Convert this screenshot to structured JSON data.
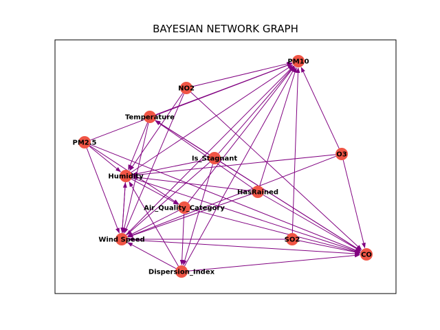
{
  "title": "BAYESIAN NETWORK GRAPH",
  "colors": {
    "node": "#f05545",
    "edge": "#800080",
    "frame": "#000000",
    "background": "#ffffff"
  },
  "nodes": [
    {
      "id": "PM10",
      "label": "PM10"
    },
    {
      "id": "NO2",
      "label": "NO2"
    },
    {
      "id": "Temperature",
      "label": "Temperature"
    },
    {
      "id": "PM2.5",
      "label": "PM2.5"
    },
    {
      "id": "O3",
      "label": "O3"
    },
    {
      "id": "Is_Stagnant",
      "label": "Is_Stagnant"
    },
    {
      "id": "Humidity",
      "label": "Humidity"
    },
    {
      "id": "HasRained",
      "label": "HasRained"
    },
    {
      "id": "Air_Quality_Category",
      "label": "Air_Quality_Category"
    },
    {
      "id": "Wind Speed",
      "label": "Wind Speed"
    },
    {
      "id": "SO2",
      "label": "SO2"
    },
    {
      "id": "CO",
      "label": "CO"
    },
    {
      "id": "Dispersion_Index",
      "label": "Dispersion_Index"
    }
  ],
  "edges": [
    [
      "PM2.5",
      "PM10"
    ],
    [
      "Temperature",
      "PM10"
    ],
    [
      "NO2",
      "PM10"
    ],
    [
      "Humidity",
      "PM10"
    ],
    [
      "Is_Stagnant",
      "PM10"
    ],
    [
      "Wind Speed",
      "PM10"
    ],
    [
      "Air_Quality_Category",
      "PM10"
    ],
    [
      "HasRained",
      "PM10"
    ],
    [
      "SO2",
      "PM10"
    ],
    [
      "O3",
      "PM10"
    ],
    [
      "Dispersion_Index",
      "PM10"
    ],
    [
      "NO2",
      "Humidity"
    ],
    [
      "NO2",
      "Wind Speed"
    ],
    [
      "NO2",
      "CO"
    ],
    [
      "Temperature",
      "Humidity"
    ],
    [
      "Temperature",
      "Wind Speed"
    ],
    [
      "Temperature",
      "CO"
    ],
    [
      "PM2.5",
      "Humidity"
    ],
    [
      "PM2.5",
      "Wind Speed"
    ],
    [
      "PM2.5",
      "Air_Quality_Category"
    ],
    [
      "PM2.5",
      "CO"
    ],
    [
      "O3",
      "Humidity"
    ],
    [
      "O3",
      "Wind Speed"
    ],
    [
      "O3",
      "CO"
    ],
    [
      "Is_Stagnant",
      "Temperature"
    ],
    [
      "Is_Stagnant",
      "Humidity"
    ],
    [
      "Is_Stagnant",
      "Wind Speed"
    ],
    [
      "Is_Stagnant",
      "Dispersion_Index"
    ],
    [
      "Is_Stagnant",
      "CO"
    ],
    [
      "HasRained",
      "Temperature"
    ],
    [
      "HasRained",
      "Humidity"
    ],
    [
      "HasRained",
      "Wind Speed"
    ],
    [
      "HasRained",
      "CO"
    ],
    [
      "Humidity",
      "Wind Speed"
    ],
    [
      "Humidity",
      "CO"
    ],
    [
      "Humidity",
      "Air_Quality_Category"
    ],
    [
      "Air_Quality_Category",
      "Wind Speed"
    ],
    [
      "Air_Quality_Category",
      "Dispersion_Index"
    ],
    [
      "Air_Quality_Category",
      "CO"
    ],
    [
      "Wind Speed",
      "Humidity"
    ],
    [
      "Wind Speed",
      "CO"
    ],
    [
      "SO2",
      "Wind Speed"
    ],
    [
      "SO2",
      "CO"
    ],
    [
      "Dispersion_Index",
      "Humidity"
    ],
    [
      "Dispersion_Index",
      "Wind Speed"
    ],
    [
      "Dispersion_Index",
      "CO"
    ]
  ]
}
